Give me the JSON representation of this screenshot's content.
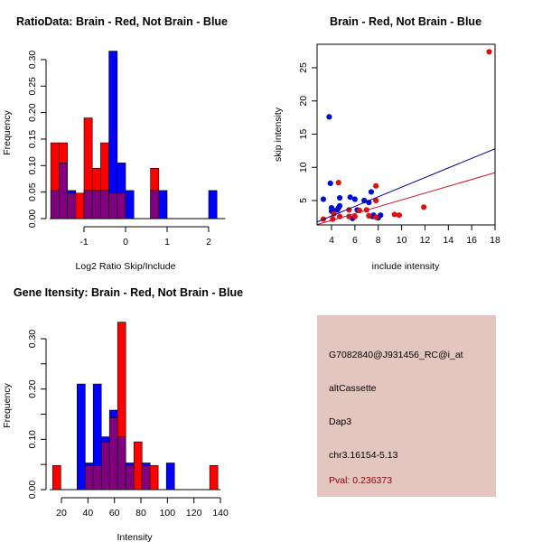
{
  "colors": {
    "brain": "#ff0000",
    "not_brain": "#0000ff",
    "overlap": "#800080",
    "brain_point": "#e01010",
    "not_brain_point": "#0010d0",
    "brain_line": "#c8102e",
    "not_brain_line": "#00008b",
    "info_bg": "#e4c6c0",
    "pval_text": "#8b0000"
  },
  "chart_data": [
    {
      "type": "bar",
      "id": "ratio_hist",
      "title": "RatioData: Brain - Red, Not Brain - Blue",
      "xlabel": "Log2 Ratio Skip/Include",
      "ylabel": "Frequency",
      "xlim": [
        -1.8,
        2.4
      ],
      "ylim": [
        0,
        0.3
      ],
      "xticks": [
        -1,
        0,
        1,
        2
      ],
      "xtick_labels": [
        "-1",
        "0",
        "1",
        "2"
      ],
      "yticks": [
        0,
        0.05,
        0.1,
        0.15,
        0.2,
        0.25,
        0.3
      ],
      "ytick_labels": [
        "0.00",
        "0.05",
        "0.10",
        "0.15",
        "0.20",
        "0.25",
        "0.30"
      ],
      "bin_width": 0.2,
      "bins": [
        -1.8,
        -1.6,
        -1.4,
        -1.2,
        -1.0,
        -0.8,
        -0.6,
        -0.4,
        -0.2,
        0.0,
        0.6,
        0.8,
        2.0
      ],
      "series": [
        {
          "name": "Brain",
          "color": "red",
          "values": [
            0.143,
            0.143,
            0.048,
            0.048,
            0.19,
            0.095,
            0.143,
            0.048,
            0.048,
            0,
            0.095,
            0,
            0
          ]
        },
        {
          "name": "Not Brain",
          "color": "blue",
          "values": [
            0.053,
            0.105,
            0.053,
            0,
            0.053,
            0.053,
            0.053,
            0.316,
            0.105,
            0.053,
            0.053,
            0.053,
            0.053
          ]
        }
      ]
    },
    {
      "type": "scatter",
      "id": "intensity_scatter",
      "title": "Brain - Red, Not Brain - Blue",
      "xlabel": "include intensity",
      "ylabel": "skip intensity",
      "xlim": [
        2.8,
        18
      ],
      "ylim": [
        1.2,
        28.4
      ],
      "xticks": [
        4,
        6,
        8,
        10,
        12,
        14,
        16,
        18
      ],
      "xtick_labels": [
        "4",
        "6",
        "8",
        "10",
        "12",
        "14",
        "16",
        "18"
      ],
      "yticks": [
        5,
        10,
        15,
        20,
        25
      ],
      "ytick_labels": [
        "5",
        "10",
        "15",
        "20",
        "25"
      ],
      "series": [
        {
          "name": "Not Brain",
          "color": "blue",
          "points": [
            [
              3.3,
              5.2
            ],
            [
              3.8,
              17.6
            ],
            [
              3.9,
              7.6
            ],
            [
              4.0,
              3.9
            ],
            [
              4.1,
              3.6
            ],
            [
              4.0,
              3.4
            ],
            [
              4.5,
              3.6
            ],
            [
              4.6,
              3.9
            ],
            [
              4.7,
              4.2
            ],
            [
              4.7,
              5.4
            ],
            [
              5.6,
              5.5
            ],
            [
              6.0,
              5.2
            ],
            [
              5.8,
              2.3
            ],
            [
              6.2,
              3.6
            ],
            [
              6.8,
              5.0
            ],
            [
              7.2,
              4.7
            ],
            [
              7.4,
              6.3
            ],
            [
              7.6,
              2.8
            ],
            [
              8.0,
              2.4
            ],
            [
              8.2,
              2.8
            ],
            [
              7.5,
              2.6
            ]
          ],
          "fit_line": [
            [
              2.8,
              1.8
            ],
            [
              18,
              12.8
            ]
          ]
        },
        {
          "name": "Brain",
          "color": "red",
          "points": [
            [
              3.3,
              2.2
            ],
            [
              4.1,
              2.2
            ],
            [
              4.2,
              3.0
            ],
            [
              4.7,
              2.6
            ],
            [
              4.6,
              7.7
            ],
            [
              5.5,
              3.6
            ],
            [
              5.5,
              2.6
            ],
            [
              6.0,
              2.6
            ],
            [
              6.4,
              3.5
            ],
            [
              7.0,
              3.6
            ],
            [
              7.2,
              2.7
            ],
            [
              7.8,
              5.0
            ],
            [
              7.8,
              7.2
            ],
            [
              7.8,
              2.5
            ],
            [
              9.4,
              2.9
            ],
            [
              9.8,
              2.8
            ],
            [
              11.9,
              4.0
            ],
            [
              17.5,
              27.4
            ]
          ],
          "fit_line": [
            [
              2.8,
              1.4
            ],
            [
              18,
              9.2
            ]
          ]
        }
      ]
    },
    {
      "type": "bar",
      "id": "gene_hist",
      "title": "Gene Itensity: Brain - Red, Not Brain - Blue",
      "xlabel": "Intensity",
      "ylabel": "Frequency",
      "xlim": [
        13.4,
        140
      ],
      "ylim": [
        0,
        0.33
      ],
      "xticks": [
        20,
        40,
        60,
        80,
        100,
        120,
        140
      ],
      "xtick_labels": [
        "20",
        "40",
        "60",
        "80",
        "100",
        "120",
        "140"
      ],
      "yticks": [
        0,
        0.05,
        0.1,
        0.15,
        0.2,
        0.25,
        0.3
      ],
      "ytick_labels": [
        "0.00",
        "",
        "0.10",
        "",
        "0.20",
        "",
        "0.30"
      ],
      "bin_width": 6.13,
      "bins": [
        13.4,
        31.8,
        37.9,
        44.0,
        50.2,
        56.3,
        62.4,
        68.5,
        74.7,
        80.8,
        86.9,
        99.2,
        131.9
      ],
      "series": [
        {
          "name": "Brain",
          "color": "red",
          "values": [
            0.048,
            0,
            0.048,
            0.048,
            0.095,
            0.143,
            0.333,
            0.048,
            0.095,
            0.048,
            0.048,
            0,
            0.048
          ]
        },
        {
          "name": "Not Brain",
          "color": "blue",
          "values": [
            0,
            0.21,
            0.053,
            0.21,
            0.105,
            0.158,
            0.105,
            0.053,
            0,
            0.053,
            0,
            0.053,
            0
          ]
        }
      ]
    }
  ],
  "info_panel": {
    "probe_id": "G7082840@J931456_RC@i_at",
    "event_type": "altCassette",
    "gene": "Dap3",
    "location": "chr3.16154-5.13",
    "pval": "Pval: 0.236373"
  }
}
